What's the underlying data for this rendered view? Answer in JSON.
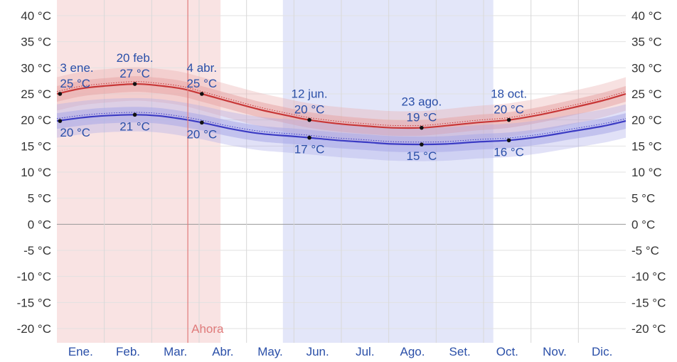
{
  "chart_data": {
    "type": "line",
    "title": "",
    "xlabel": "",
    "ylabel": "",
    "ylim": [
      -20,
      40
    ],
    "y_ticks": [
      "40 °C",
      "35 °C",
      "30 °C",
      "25 °C",
      "20 °C",
      "15 °C",
      "10 °C",
      "5 °C",
      "0 °C",
      "-5 °C",
      "-10 °C",
      "-15 °C",
      "-20 °C"
    ],
    "y_tick_values": [
      40,
      35,
      30,
      25,
      20,
      15,
      10,
      5,
      0,
      -5,
      -10,
      -15,
      -20
    ],
    "months": [
      "Ene.",
      "Feb.",
      "Mar.",
      "Abr.",
      "May.",
      "Jun.",
      "Jul.",
      "Ago.",
      "Set.",
      "Oct.",
      "Nov.",
      "Dic."
    ],
    "x_domain_days": [
      0,
      365
    ],
    "grid": true,
    "hot_season": {
      "start_day": 0,
      "end_day": 105,
      "color": "#f9e3e3"
    },
    "cool_season": {
      "start_day": 145,
      "end_day": 280,
      "color": "#e3e6f9"
    },
    "now": {
      "label": "Ahora",
      "day": 84,
      "color": "#e07a7a"
    },
    "series": [
      {
        "role": "high",
        "color": "#c83737",
        "band_color": "#e8a8a8",
        "x_days": [
          0,
          15,
          30,
          50,
          65,
          80,
          93,
          110,
          130,
          150,
          162,
          180,
          200,
          215,
          234,
          250,
          270,
          290,
          310,
          330,
          350,
          365
        ],
        "values": [
          25,
          26,
          26.5,
          26.9,
          26.6,
          26,
          25,
          23.6,
          22,
          20.7,
          20,
          19.3,
          18.8,
          18.5,
          18.5,
          18.9,
          19.5,
          20,
          21,
          22.3,
          23.7,
          25
        ]
      },
      {
        "role": "low",
        "color": "#3b3bc4",
        "band_color": "#a9a9e8",
        "x_days": [
          0,
          15,
          30,
          50,
          65,
          80,
          93,
          110,
          130,
          150,
          162,
          180,
          200,
          215,
          234,
          250,
          270,
          290,
          310,
          330,
          350,
          365
        ],
        "values": [
          19.8,
          20.4,
          20.8,
          21,
          20.8,
          20.2,
          19.5,
          18.4,
          17.4,
          16.9,
          16.6,
          16.1,
          15.7,
          15.4,
          15.3,
          15.4,
          15.8,
          16.1,
          16.8,
          17.8,
          18.8,
          19.8
        ]
      }
    ],
    "annotations": [
      {
        "day": 2,
        "value": 25,
        "lines": [
          "3 ene.",
          "25 °C"
        ],
        "position": "above"
      },
      {
        "day": 2,
        "value": 19.8,
        "lines": [
          "20 °C"
        ],
        "position": "below"
      },
      {
        "day": 50,
        "value": 26.9,
        "lines": [
          "20 feb.",
          "27 °C"
        ],
        "position": "above"
      },
      {
        "day": 50,
        "value": 21,
        "lines": [
          "21 °C"
        ],
        "position": "below"
      },
      {
        "day": 93,
        "value": 25,
        "lines": [
          "4 abr.",
          "25 °C"
        ],
        "position": "above"
      },
      {
        "day": 93,
        "value": 19.5,
        "lines": [
          "20 °C"
        ],
        "position": "below"
      },
      {
        "day": 162,
        "value": 20,
        "lines": [
          "12 jun.",
          "20 °C"
        ],
        "position": "above"
      },
      {
        "day": 162,
        "value": 16.6,
        "lines": [
          "17 °C"
        ],
        "position": "below"
      },
      {
        "day": 234,
        "value": 18.5,
        "lines": [
          "23 ago.",
          "19 °C"
        ],
        "position": "above"
      },
      {
        "day": 234,
        "value": 15.3,
        "lines": [
          "15 °C"
        ],
        "position": "below"
      },
      {
        "day": 290,
        "value": 20,
        "lines": [
          "18 oct.",
          "20 °C"
        ],
        "position": "above"
      },
      {
        "day": 290,
        "value": 16.1,
        "lines": [
          "16 °C"
        ],
        "position": "below"
      }
    ]
  }
}
